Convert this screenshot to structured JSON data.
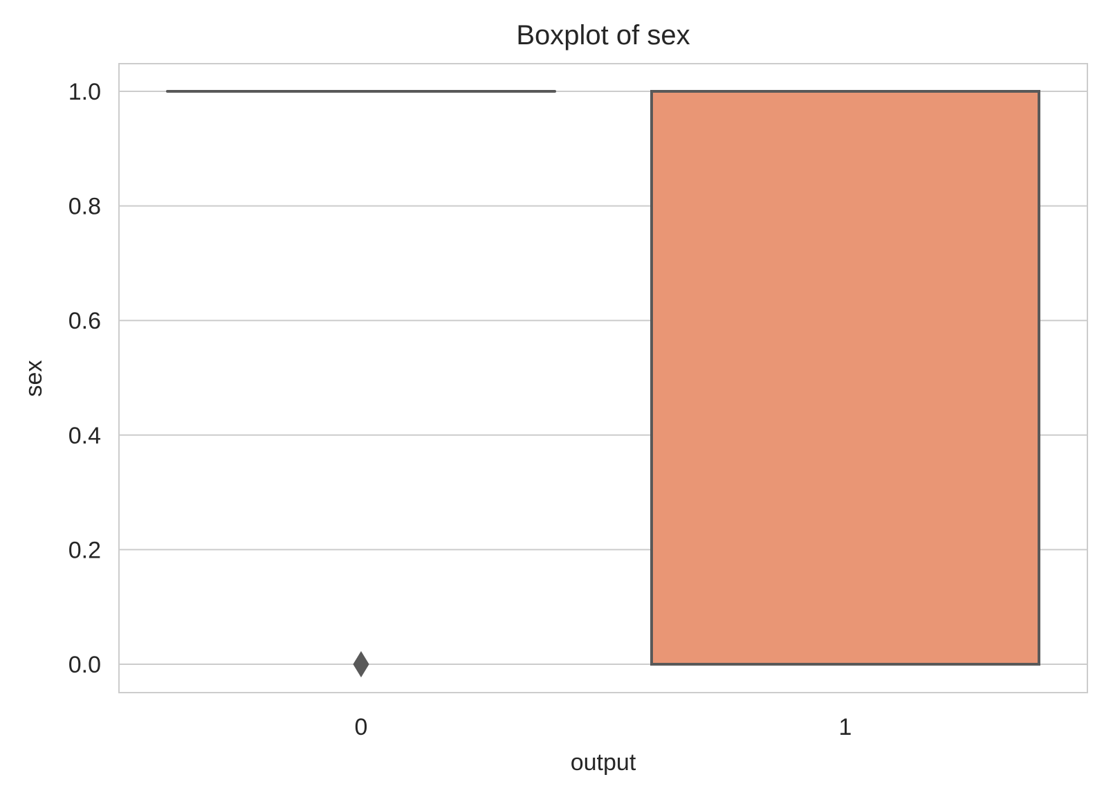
{
  "chart_data": {
    "type": "box",
    "title": "Boxplot of sex",
    "xlabel": "output",
    "ylabel": "sex",
    "categories": [
      "0",
      "1"
    ],
    "ylim": [
      -0.05,
      1.05
    ],
    "yticks": [
      "0.0",
      "0.2",
      "0.4",
      "0.6",
      "0.8",
      "1.0"
    ],
    "grid": true,
    "boxes": [
      {
        "category": "0",
        "q1": 1.0,
        "median": 1.0,
        "q3": 1.0,
        "whisker_low": 1.0,
        "whisker_high": 1.0,
        "outliers": [
          0.0
        ],
        "color": "#ffffff"
      },
      {
        "category": "1",
        "q1": 0.0,
        "median": 1.0,
        "q3": 1.0,
        "whisker_low": 0.0,
        "whisker_high": 1.0,
        "outliers": [],
        "color": "#e99675"
      }
    ],
    "edge_color": "#595959"
  }
}
